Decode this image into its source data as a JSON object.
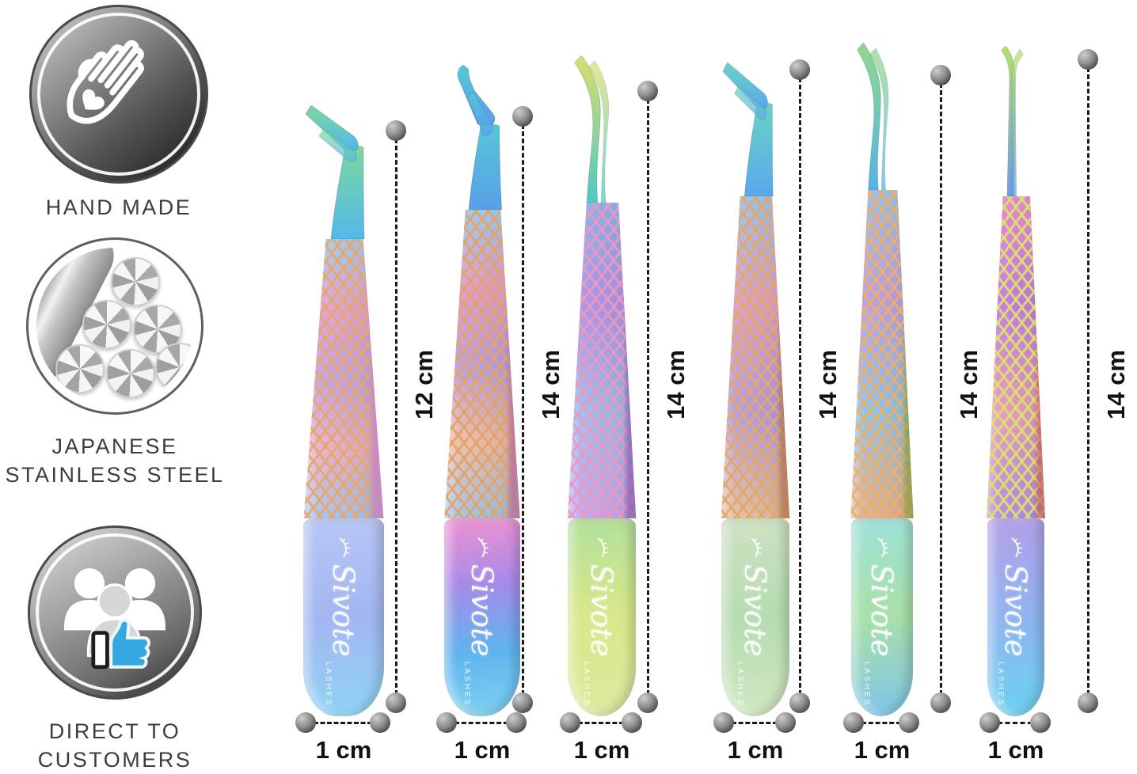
{
  "badges": [
    {
      "icon": "hand-heart-icon",
      "label_lines": [
        "HAND MADE"
      ]
    },
    {
      "icon": "steel-rods-icon",
      "label_lines": [
        "JAPANESE",
        "STAINLESS STEEL"
      ]
    },
    {
      "icon": "customers-thumbs-up-icon",
      "label_lines": [
        "DIRECT TO",
        "CUSTOMERS"
      ]
    }
  ],
  "brand": {
    "name": "Sivote",
    "sub": "LASHES"
  },
  "tweezers": [
    {
      "length": "12 cm",
      "width": "1 cm",
      "tip": "angle90",
      "tip_colors": [
        "#7fd89b",
        "#52b9ea"
      ],
      "blade_colors": [
        "#a9d0f0",
        "#e7a6d6",
        "#c2a8ee",
        "#edb2cf",
        "#a8c8f0"
      ],
      "lattice": "#e5a76d",
      "edge": "#c77fd0",
      "handle_colors": [
        "#b7c6f4",
        "#a3b6f2",
        "#8ed4f4"
      ]
    },
    {
      "length": "14 cm",
      "width": "1 cm",
      "tip": "angle45",
      "tip_colors": [
        "#54c8d8",
        "#5a9fe8"
      ],
      "blade_colors": [
        "#9fd0f0",
        "#e8a0ce",
        "#b9a2e8",
        "#f0c0a8",
        "#9fc8f0"
      ],
      "lattice": "#e2a36a",
      "edge": "#b86a9e",
      "handle_colors": [
        "#ef92d2",
        "#a88ae8",
        "#5fb4ee",
        "#7fd2f0"
      ]
    },
    {
      "length": "14 cm",
      "width": "1 cm",
      "tip": "curve",
      "tip_colors": [
        "#d8e06a",
        "#4ec8c4"
      ],
      "blade_colors": [
        "#8fb4ee",
        "#b295e8",
        "#9fc2f0",
        "#c9a8ee"
      ],
      "lattice": "#e69ac2",
      "edge": "#8a5fb4",
      "handle_colors": [
        "#b2e09a",
        "#d8e88a",
        "#e0e89f"
      ]
    },
    {
      "length": "14 cm",
      "width": "1 cm",
      "tip": "angle90",
      "tip_colors": [
        "#6ad4c2",
        "#5aa8ec"
      ],
      "blade_colors": [
        "#9fc8f0",
        "#e2a2cc",
        "#b49fe8",
        "#e8c2a2"
      ],
      "lattice": "#e2a86a",
      "edge": "#b4744e",
      "handle_colors": [
        "#cfe2c2",
        "#b5dcb2",
        "#d2e8c2"
      ]
    },
    {
      "length": "14 cm",
      "width": "1 cm",
      "tip": "curve",
      "tip_colors": [
        "#8fd88a",
        "#54b4e8"
      ],
      "blade_colors": [
        "#9fc4ee",
        "#c2a2e8",
        "#8fc8f0",
        "#e8b295"
      ],
      "lattice": "#e8b06a",
      "edge": "#8a9f44",
      "handle_colors": [
        "#9fe2d8",
        "#a8e0a8",
        "#7fc4ea"
      ]
    },
    {
      "length": "14 cm",
      "width": "1 cm",
      "tip": "slim",
      "tip_colors": [
        "#b4e06a",
        "#6a9fe8"
      ],
      "blade_colors": [
        "#e88fd2",
        "#c27fe8",
        "#e8a0c2",
        "#b48fe8"
      ],
      "lattice": "#dfe06a",
      "edge": "#c9605f",
      "handle_colors": [
        "#b49fe8",
        "#8fb4f0",
        "#6ad2f2"
      ]
    }
  ],
  "measurement_style": {
    "dot_color": "#6e6e6e",
    "line_color": "#1a1a1a",
    "label_color": "#111111"
  },
  "badge_style": {
    "text_color": "#3c3c3c",
    "thumb_blue": "#35a8e0"
  }
}
